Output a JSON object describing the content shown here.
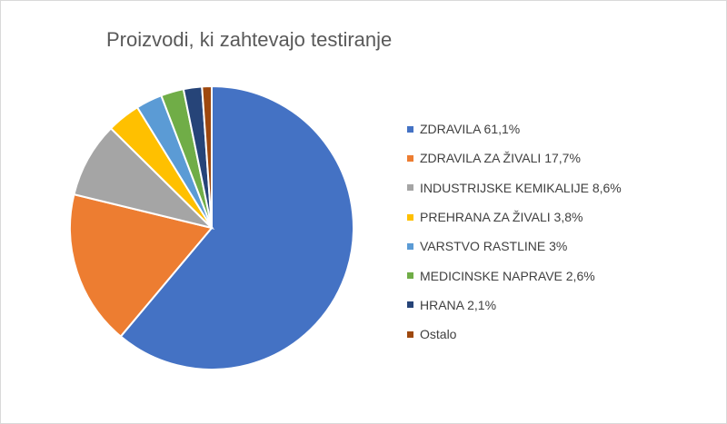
{
  "chart_data": {
    "type": "pie",
    "title": "Proizvodi, ki zahtevajo testiranje",
    "legend_position": "right",
    "start_angle_deg": 0,
    "direction": "clockwise",
    "slices": [
      {
        "label": "ZDRAVILA 61,1%",
        "value": 61.1,
        "color": "#4472C4"
      },
      {
        "label": "ZDRAVILA ZA ŽIVALI 17,7%",
        "value": 17.7,
        "color": "#ED7D31"
      },
      {
        "label": "INDUSTRIJSKE KEMIKALIJE 8,6%",
        "value": 8.6,
        "color": "#A5A5A5"
      },
      {
        "label": "PREHRANA ZA ŽIVALI 3,8%",
        "value": 3.8,
        "color": "#FFC000"
      },
      {
        "label": "VARSTVO RASTLINE 3%",
        "value": 3.0,
        "color": "#5B9BD5"
      },
      {
        "label": "MEDICINSKE NAPRAVE 2,6%",
        "value": 2.6,
        "color": "#70AD47"
      },
      {
        "label": "HRANA 2,1%",
        "value": 2.1,
        "color": "#264478"
      },
      {
        "label": "Ostalo",
        "value": 1.1,
        "color": "#9E480E"
      }
    ]
  }
}
